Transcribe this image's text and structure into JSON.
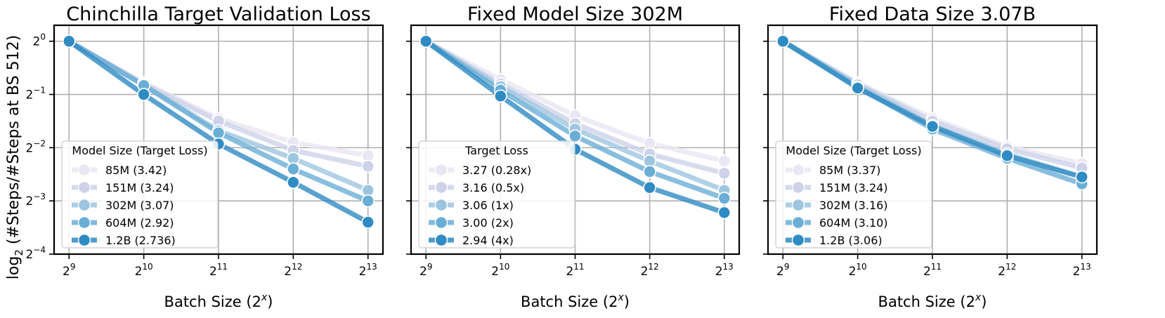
{
  "figure": {
    "ylabel_main": "log",
    "ylabel_sub": "2",
    "ylabel_rest": " (#Steps/#Steps at BS 512)"
  },
  "palette": [
    "#e9e7f3",
    "#cdd2e8",
    "#9ec5e0",
    "#6aaed6",
    "#2f8bc3"
  ],
  "chart_data": [
    {
      "type": "line",
      "title": "Chinchilla Target Validation Loss",
      "xlabel": "Batch Size (2",
      "xlabel_sup": "x",
      "xlabel_close": ")",
      "x": [
        9,
        10,
        11,
        12,
        13
      ],
      "x_tick_labels": [
        {
          "base": "2",
          "exp": "9"
        },
        {
          "base": "2",
          "exp": "10"
        },
        {
          "base": "2",
          "exp": "11"
        },
        {
          "base": "2",
          "exp": "12"
        },
        {
          "base": "2",
          "exp": "13"
        }
      ],
      "y_log2_ticks": [
        0,
        -1,
        -2,
        -3,
        -4
      ],
      "y_tick_labels": [
        {
          "base": "2",
          "exp": "0"
        },
        {
          "base": "2",
          "exp": "−1"
        },
        {
          "base": "2",
          "exp": "−2"
        },
        {
          "base": "2",
          "exp": "−3"
        },
        {
          "base": "2",
          "exp": "−4"
        }
      ],
      "show_y_tick_labels": true,
      "xlim": [
        8.8,
        13.2
      ],
      "ylim_log2": [
        -4,
        0.3
      ],
      "grid": true,
      "legend": {
        "title": "Model Size (Target Loss)",
        "location": "lower-left",
        "entries": [
          "85M (3.42)",
          "151M (3.24)",
          "302M (3.07)",
          "604M (2.92)",
          "1.2B (2.736)"
        ]
      },
      "series": [
        {
          "name": "85M (3.42)",
          "log2_values": [
            0,
            -0.78,
            -1.45,
            -1.9,
            -2.15
          ]
        },
        {
          "name": "151M (3.24)",
          "log2_values": [
            0,
            -0.8,
            -1.5,
            -2.05,
            -2.35
          ]
        },
        {
          "name": "302M (3.07)",
          "log2_values": [
            0,
            -0.82,
            -1.68,
            -2.2,
            -2.8
          ]
        },
        {
          "name": "604M (2.92)",
          "log2_values": [
            0,
            -0.83,
            -1.72,
            -2.4,
            -3.0
          ]
        },
        {
          "name": "1.2B (2.736)",
          "log2_values": [
            0,
            -1.0,
            -1.93,
            -2.65,
            -3.4
          ]
        }
      ]
    },
    {
      "type": "line",
      "title": "Fixed Model Size 302M",
      "xlabel": "Batch Size (2",
      "xlabel_sup": "x",
      "xlabel_close": ")",
      "x": [
        9,
        10,
        11,
        12,
        13
      ],
      "x_tick_labels": [
        {
          "base": "2",
          "exp": "9"
        },
        {
          "base": "2",
          "exp": "10"
        },
        {
          "base": "2",
          "exp": "11"
        },
        {
          "base": "2",
          "exp": "12"
        },
        {
          "base": "2",
          "exp": "13"
        }
      ],
      "y_log2_ticks": [
        0,
        -1,
        -2,
        -3,
        -4
      ],
      "y_tick_labels": [],
      "show_y_tick_labels": false,
      "xlim": [
        8.8,
        13.2
      ],
      "ylim_log2": [
        -4,
        0.3
      ],
      "grid": true,
      "legend": {
        "title": "Target Loss",
        "location": "lower-left",
        "entries": [
          "3.27 (0.28x)",
          "3.16 (0.5x)",
          "3.06 (1x)",
          "3.00 (2x)",
          "2.94 (4x)"
        ]
      },
      "series": [
        {
          "name": "3.27 (0.28x)",
          "log2_values": [
            0,
            -0.72,
            -1.4,
            -1.92,
            -2.25
          ]
        },
        {
          "name": "3.16 (0.5x)",
          "log2_values": [
            0,
            -0.8,
            -1.55,
            -2.12,
            -2.48
          ]
        },
        {
          "name": "3.06 (1x)",
          "log2_values": [
            0,
            -0.85,
            -1.65,
            -2.25,
            -2.8
          ]
        },
        {
          "name": "3.00 (2x)",
          "log2_values": [
            0,
            -0.92,
            -1.78,
            -2.45,
            -2.95
          ]
        },
        {
          "name": "2.94 (4x)",
          "log2_values": [
            0,
            -1.03,
            -2.03,
            -2.75,
            -3.22
          ]
        }
      ]
    },
    {
      "type": "line",
      "title": "Fixed Data Size 3.07B",
      "xlabel": "Batch Size (2",
      "xlabel_sup": "x",
      "xlabel_close": ")",
      "x": [
        9,
        10,
        11,
        12,
        13
      ],
      "x_tick_labels": [
        {
          "base": "2",
          "exp": "9"
        },
        {
          "base": "2",
          "exp": "10"
        },
        {
          "base": "2",
          "exp": "11"
        },
        {
          "base": "2",
          "exp": "12"
        },
        {
          "base": "2",
          "exp": "13"
        }
      ],
      "y_log2_ticks": [
        0,
        -1,
        -2,
        -3,
        -4
      ],
      "y_tick_labels": [],
      "show_y_tick_labels": false,
      "xlim": [
        8.8,
        13.2
      ],
      "ylim_log2": [
        -4,
        0.3
      ],
      "grid": true,
      "legend": {
        "title": "Model Size (Target Loss)",
        "location": "lower-left",
        "entries": [
          "85M (3.37)",
          "151M (3.24)",
          "302M (3.16)",
          "604M (3.10)",
          "1.2B (3.06)"
        ]
      },
      "series": [
        {
          "name": "85M (3.37)",
          "log2_values": [
            0,
            -0.78,
            -1.45,
            -1.98,
            -2.3
          ]
        },
        {
          "name": "151M (3.24)",
          "log2_values": [
            0,
            -0.8,
            -1.5,
            -2.02,
            -2.38
          ]
        },
        {
          "name": "302M (3.16)",
          "log2_values": [
            0,
            -0.82,
            -1.58,
            -2.12,
            -2.55
          ]
        },
        {
          "name": "604M (3.10)",
          "log2_values": [
            0,
            -0.86,
            -1.65,
            -2.2,
            -2.68
          ]
        },
        {
          "name": "1.2B (3.06)",
          "log2_values": [
            0,
            -0.88,
            -1.6,
            -2.15,
            -2.55
          ]
        }
      ]
    }
  ]
}
